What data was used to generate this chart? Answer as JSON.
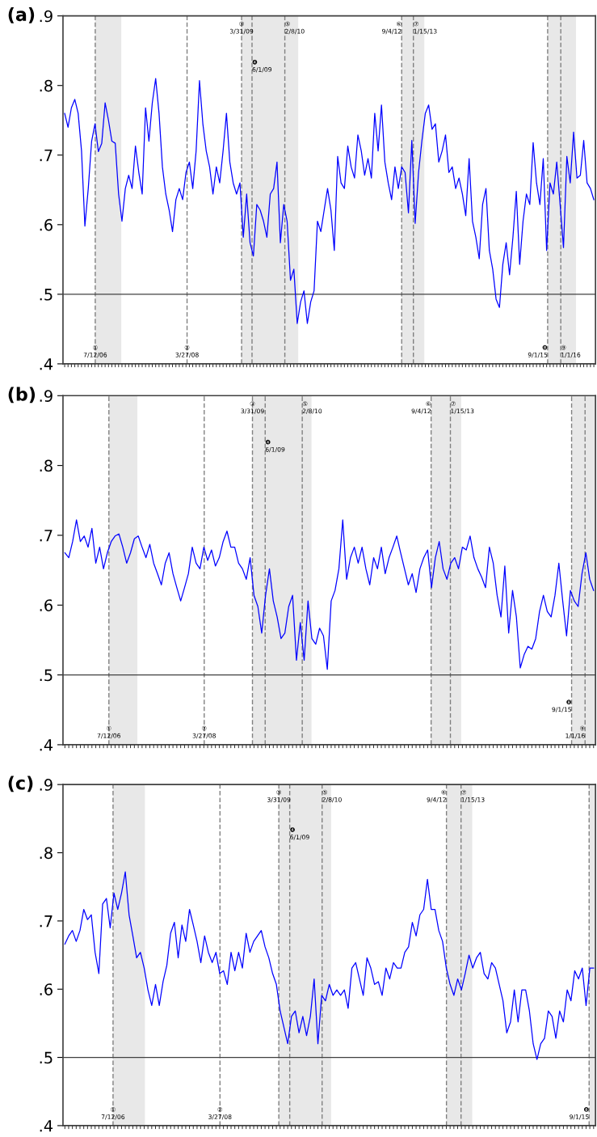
{
  "chart_data": [
    {
      "type": "line",
      "title": "(a)",
      "ylim": [
        0.4,
        0.9
      ],
      "yticks": [
        {
          "value": 0.4,
          "label": ".4"
        },
        {
          "value": 0.5,
          "label": ".5"
        },
        {
          "value": 0.6,
          "label": ".6"
        },
        {
          "value": 0.7,
          "label": ".7"
        },
        {
          "value": 0.8,
          "label": ".8"
        },
        {
          "value": 0.9,
          "label": ".9"
        }
      ],
      "tick_labels": "y",
      "line_style": "solid",
      "categories": [
        null,
        null,
        null,
        null,
        null,
        null,
        null,
        null,
        null,
        null,
        null,
        null,
        null,
        null,
        null,
        null,
        null,
        null,
        null,
        null,
        null,
        null,
        null,
        null,
        null,
        null,
        null,
        null,
        null,
        null,
        null,
        null,
        null,
        null,
        null,
        null,
        null,
        null,
        null,
        null,
        null,
        null,
        null,
        null,
        null,
        null,
        null,
        null,
        null,
        null,
        null,
        null,
        null,
        null,
        null,
        null,
        null,
        null,
        null,
        null,
        null,
        null,
        null,
        null,
        null,
        null,
        null,
        null,
        null,
        null,
        null,
        null,
        null,
        null,
        null,
        null,
        null,
        null,
        null,
        null,
        null,
        null,
        null,
        null,
        null,
        null,
        null,
        null,
        null,
        null,
        null,
        null,
        null,
        null,
        null,
        null,
        null,
        null,
        null,
        null,
        null,
        null,
        null,
        null,
        null,
        null,
        null,
        null,
        null,
        null,
        null,
        null,
        null,
        null,
        null,
        null,
        null,
        null,
        null,
        null,
        null,
        null,
        null,
        null,
        null,
        null,
        null,
        null,
        null,
        null,
        null,
        null,
        null,
        null,
        null,
        null,
        null,
        null,
        null,
        null,
        null,
        null,
        null,
        null,
        null,
        null,
        null,
        null,
        null,
        null,
        null,
        null,
        null,
        null,
        null,
        null,
        null,
        null
      ],
      "series": [
        {
          "color": "#0000ff",
          "values": [
            0.76,
            0.74,
            0.768,
            0.78,
            0.76,
            0.706,
            0.598,
            0.652,
            0.72,
            0.745,
            0.705,
            0.717,
            0.775,
            0.75,
            0.72,
            0.717,
            0.644,
            0.605,
            0.652,
            0.671,
            0.652,
            0.713,
            0.675,
            0.644,
            0.768,
            0.72,
            0.775,
            0.81,
            0.76,
            0.683,
            0.644,
            0.621,
            0.59,
            0.636,
            0.652,
            0.636,
            0.675,
            0.69,
            0.652,
            0.706,
            0.807,
            0.745,
            0.706,
            0.683,
            0.644,
            0.683,
            0.66,
            0.706,
            0.76,
            0.69,
            0.66,
            0.644,
            0.66,
            0.582,
            0.644,
            0.574,
            0.555,
            0.629,
            0.621,
            0.605,
            0.582,
            0.644,
            0.652,
            0.69,
            0.574,
            0.629,
            0.605,
            0.52,
            0.536,
            0.458,
            0.489,
            0.505,
            0.458,
            0.489,
            0.505,
            0.605,
            0.59,
            0.621,
            0.652,
            0.621,
            0.563,
            0.698,
            0.66,
            0.652,
            0.713,
            0.683,
            0.667,
            0.729,
            0.706,
            0.671,
            0.695,
            0.667,
            0.76,
            0.706,
            0.772,
            0.69,
            0.66,
            0.636,
            0.683,
            0.652,
            0.683,
            0.675,
            0.617,
            0.721,
            0.602,
            0.675,
            0.721,
            0.76,
            0.772,
            0.737,
            0.745,
            0.69,
            0.706,
            0.729,
            0.675,
            0.683,
            0.652,
            0.667,
            0.644,
            0.613,
            0.695,
            0.605,
            0.582,
            0.551,
            0.629,
            0.652,
            0.563,
            0.536,
            0.493,
            0.481,
            0.543,
            0.574,
            0.528,
            0.582,
            0.648,
            0.543,
            0.605,
            0.644,
            0.629,
            0.718,
            0.66,
            0.629,
            0.695,
            0.563,
            0.66,
            0.644,
            0.69,
            0.629,
            0.567,
            0.698,
            0.66,
            0.733,
            0.667,
            0.671,
            0.721,
            0.66,
            0.652,
            0.636
          ]
        }
      ],
      "ref_lines": [
        {
          "axis": "y",
          "value": 0.5,
          "color": "#404040",
          "line_style": "solid"
        }
      ],
      "annotations": [
        "①\n7/12/06",
        "②\n3/27/08",
        "③\n3/31/09",
        "❹\n6/1/09",
        "⑤\n2/8/10",
        "⑥\n9/4/12",
        "⑦\n1/15/13",
        "❽\n9/1/15",
        "⑨\n1/1/16"
      ]
    },
    {
      "type": "line",
      "title": "(b)",
      "ylim": [
        0.4,
        0.9
      ],
      "yticks": [
        {
          "value": 0.4,
          "label": ".4"
        },
        {
          "value": 0.5,
          "label": ".5"
        },
        {
          "value": 0.6,
          "label": ".6"
        },
        {
          "value": 0.7,
          "label": ".7"
        },
        {
          "value": 0.8,
          "label": ".8"
        },
        {
          "value": 0.9,
          "label": ".9"
        }
      ],
      "tick_labels": "y",
      "line_style": "solid",
      "categories": [
        null,
        null,
        null,
        null,
        null,
        null,
        null,
        null,
        null,
        null,
        null,
        null,
        null,
        null,
        null,
        null,
        null,
        null,
        null,
        null,
        null,
        null,
        null,
        null,
        null,
        null,
        null,
        null,
        null,
        null,
        null,
        null,
        null,
        null,
        null,
        null,
        null,
        null,
        null,
        null,
        null,
        null,
        null,
        null,
        null,
        null,
        null,
        null,
        null,
        null,
        null,
        null,
        null,
        null,
        null,
        null,
        null,
        null,
        null,
        null,
        null,
        null,
        null,
        null,
        null,
        null,
        null,
        null,
        null,
        null,
        null,
        null,
        null,
        null,
        null,
        null,
        null,
        null,
        null,
        null,
        null,
        null,
        null,
        null,
        null,
        null,
        null,
        null,
        null,
        null,
        null,
        null,
        null,
        null,
        null,
        null,
        null,
        null,
        null,
        null,
        null,
        null,
        null,
        null,
        null,
        null,
        null,
        null,
        null,
        null,
        null,
        null,
        null,
        null,
        null,
        null,
        null,
        null,
        null,
        null,
        null,
        null,
        null,
        null,
        null,
        null,
        null,
        null,
        null,
        null,
        null,
        null,
        null,
        null,
        null,
        null,
        null,
        null
      ],
      "series": [
        {
          "color": "#0000ff",
          "values": [
            0.675,
            0.668,
            0.691,
            0.722,
            0.691,
            0.699,
            0.683,
            0.71,
            0.66,
            0.683,
            0.652,
            0.675,
            0.691,
            0.699,
            0.702,
            0.683,
            0.66,
            0.675,
            0.695,
            0.699,
            0.683,
            0.668,
            0.687,
            0.66,
            0.645,
            0.629,
            0.66,
            0.675,
            0.645,
            0.625,
            0.606,
            0.625,
            0.645,
            0.683,
            0.66,
            0.652,
            0.683,
            0.664,
            0.679,
            0.656,
            0.668,
            0.691,
            0.706,
            0.683,
            0.683,
            0.66,
            0.652,
            0.637,
            0.668,
            0.614,
            0.598,
            0.56,
            0.614,
            0.652,
            0.606,
            0.583,
            0.552,
            0.56,
            0.598,
            0.614,
            0.521,
            0.575,
            0.521,
            0.606,
            0.552,
            0.544,
            0.567,
            0.556,
            0.508,
            0.606,
            0.621,
            0.652,
            0.722,
            0.637,
            0.668,
            0.683,
            0.66,
            0.683,
            0.652,
            0.629,
            0.668,
            0.652,
            0.683,
            0.645,
            0.668,
            0.683,
            0.699,
            0.675,
            0.652,
            0.629,
            0.645,
            0.618,
            0.652,
            0.668,
            0.679,
            0.625,
            0.668,
            0.691,
            0.652,
            0.637,
            0.66,
            0.668,
            0.652,
            0.683,
            0.679,
            0.699,
            0.668,
            0.652,
            0.64,
            0.625,
            0.683,
            0.66,
            0.614,
            0.583,
            0.656,
            0.56,
            0.621,
            0.583,
            0.51,
            0.529,
            0.541,
            0.537,
            0.552,
            0.591,
            0.614,
            0.591,
            0.583,
            0.614,
            0.66,
            0.606,
            0.556,
            0.621,
            0.606,
            0.598,
            0.645,
            0.675,
            0.637,
            0.621
          ]
        }
      ],
      "ref_lines": [
        {
          "axis": "y",
          "value": 0.5,
          "color": "#404040",
          "line_style": "solid"
        }
      ],
      "annotations": [
        "①\n7/12/06",
        "②\n3/27/08",
        "③\n3/31/09",
        "❹\n6/1/09",
        "⑤\n2/8/10",
        "⑥\n9/4/12",
        "⑦\n1/15/13",
        "❽\n9/1/15",
        "⑨\n1/1/16"
      ]
    },
    {
      "type": "line",
      "title": "(c)",
      "ylim": [
        0.4,
        0.9
      ],
      "yticks": [
        {
          "value": 0.4,
          "label": ".4"
        },
        {
          "value": 0.5,
          "label": ".5"
        },
        {
          "value": 0.6,
          "label": ".6"
        },
        {
          "value": 0.7,
          "label": ".7"
        },
        {
          "value": 0.8,
          "label": ".8"
        },
        {
          "value": 0.9,
          "label": ".9"
        }
      ],
      "tick_labels": "y",
      "line_style": "solid",
      "categories": [
        null,
        null,
        null,
        null,
        null,
        null,
        null,
        null,
        null,
        null,
        null,
        null,
        null,
        null,
        null,
        null,
        null,
        null,
        null,
        null,
        null,
        null,
        null,
        null,
        null,
        null,
        null,
        null,
        null,
        null,
        null,
        null,
        null,
        null,
        null,
        null,
        null,
        null,
        null,
        null,
        null,
        null,
        null,
        null,
        null,
        null,
        null,
        null,
        null,
        null,
        null,
        null,
        null,
        null,
        null,
        null,
        null,
        null,
        null,
        null,
        null,
        null,
        null,
        null,
        null,
        null,
        null,
        null,
        null,
        null,
        null,
        null,
        null,
        null,
        null,
        null,
        null,
        null,
        null,
        null,
        null,
        null,
        null,
        null,
        null,
        null,
        null,
        null,
        null,
        null,
        null,
        null,
        null,
        null,
        null,
        null,
        null,
        null,
        null,
        null,
        null,
        null,
        null,
        null,
        null,
        null,
        null,
        null,
        null,
        null,
        null,
        null,
        null,
        null,
        null,
        null,
        null,
        null,
        null,
        null,
        null,
        null,
        null,
        null,
        null,
        null,
        null,
        null,
        null,
        null,
        null,
        null,
        null,
        null,
        null,
        null,
        null,
        null,
        null,
        null,
        null
      ],
      "series": [
        {
          "color": "#0000ff",
          "values": [
            0.666,
            0.678,
            0.686,
            0.67,
            0.686,
            0.717,
            0.702,
            0.709,
            0.654,
            0.623,
            0.725,
            0.733,
            0.69,
            0.741,
            0.717,
            0.741,
            0.772,
            0.709,
            0.678,
            0.646,
            0.654,
            0.631,
            0.599,
            0.576,
            0.607,
            0.576,
            0.611,
            0.635,
            0.682,
            0.698,
            0.646,
            0.694,
            0.67,
            0.717,
            0.694,
            0.67,
            0.639,
            0.678,
            0.654,
            0.639,
            0.654,
            0.623,
            0.627,
            0.607,
            0.654,
            0.627,
            0.654,
            0.631,
            0.682,
            0.654,
            0.67,
            0.678,
            0.686,
            0.662,
            0.646,
            0.623,
            0.607,
            0.568,
            0.544,
            0.52,
            0.56,
            0.568,
            0.536,
            0.56,
            0.532,
            0.56,
            0.615,
            0.52,
            0.591,
            0.583,
            0.607,
            0.591,
            0.599,
            0.591,
            0.599,
            0.572,
            0.631,
            0.639,
            0.615,
            0.591,
            0.646,
            0.631,
            0.607,
            0.611,
            0.591,
            0.631,
            0.615,
            0.639,
            0.631,
            0.631,
            0.654,
            0.662,
            0.698,
            0.678,
            0.709,
            0.717,
            0.761,
            0.717,
            0.717,
            0.686,
            0.67,
            0.631,
            0.607,
            0.591,
            0.615,
            0.599,
            0.623,
            0.65,
            0.631,
            0.646,
            0.654,
            0.623,
            0.615,
            0.639,
            0.631,
            0.607,
            0.583,
            0.536,
            0.552,
            0.599,
            0.552,
            0.599,
            0.599,
            0.568,
            0.52,
            0.497,
            0.52,
            0.528,
            0.568,
            0.56,
            0.528,
            0.568,
            0.552,
            0.599,
            0.583,
            0.627,
            0.615,
            0.631,
            0.576,
            0.631,
            0.631
          ]
        }
      ],
      "ref_lines": [
        {
          "axis": "y",
          "value": 0.5,
          "color": "#404040",
          "line_style": "solid"
        }
      ],
      "annotations": [
        "①\n7/12/06",
        "②\n3/27/08",
        "③\n3/31/09",
        "❹\n6/1/09",
        "⑤\n2/8/10",
        "⑥\n9/4/12",
        "⑦\n1/15/13",
        "❽\n9/1/15"
      ]
    }
  ]
}
